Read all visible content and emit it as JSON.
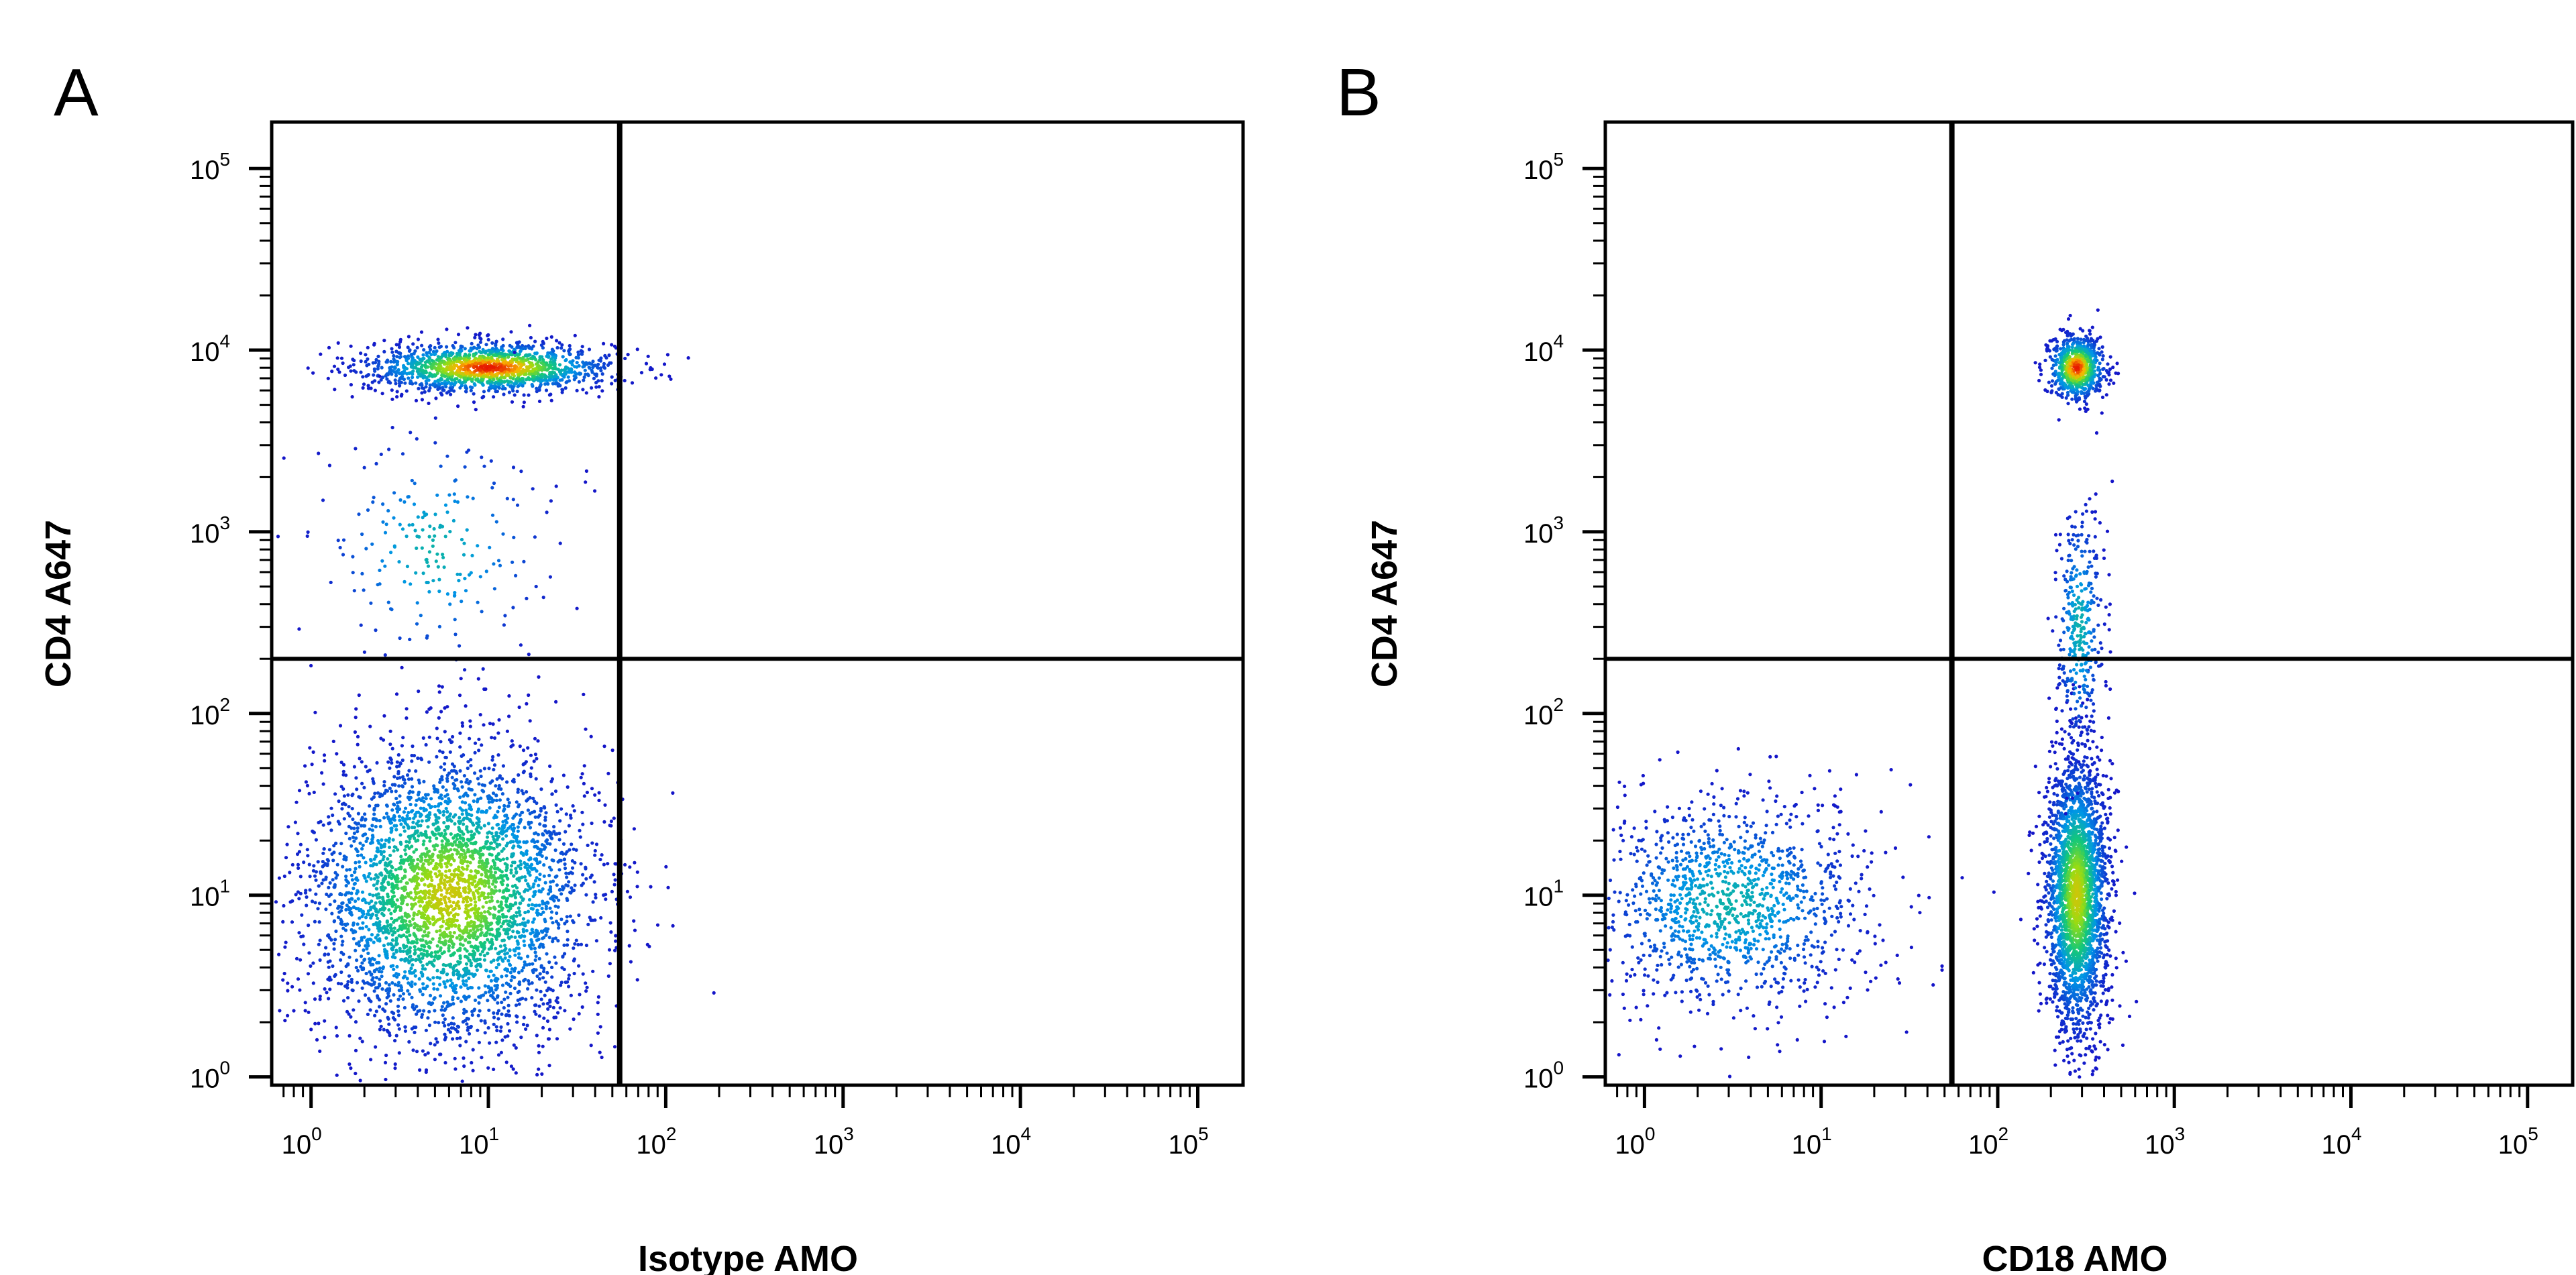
{
  "chart_data": [
    {
      "type": "scatter",
      "panel": "A",
      "xlabel": "Isotype AMO",
      "ylabel": "CD4 A647",
      "xscale": "log",
      "yscale": "log",
      "xlim": [
        0.6,
        180000
      ],
      "ylim": [
        0.9,
        180000
      ],
      "xticks": [
        {
          "base": "10",
          "exp": "0",
          "value": 1
        },
        {
          "base": "10",
          "exp": "1",
          "value": 10
        },
        {
          "base": "10",
          "exp": "2",
          "value": 100
        },
        {
          "base": "10",
          "exp": "3",
          "value": 1000
        },
        {
          "base": "10",
          "exp": "4",
          "value": 10000
        },
        {
          "base": "10",
          "exp": "5",
          "value": 100000
        }
      ],
      "yticks": [
        {
          "base": "10",
          "exp": "0",
          "value": 1
        },
        {
          "base": "10",
          "exp": "1",
          "value": 10
        },
        {
          "base": "10",
          "exp": "2",
          "value": 100
        },
        {
          "base": "10",
          "exp": "3",
          "value": 1000
        },
        {
          "base": "10",
          "exp": "4",
          "value": 10000
        },
        {
          "base": "10",
          "exp": "5",
          "value": 100000
        }
      ],
      "quadrant_gate": {
        "x": 55,
        "y": 200
      },
      "populations": [
        {
          "x_center": 10,
          "y_center": 8000,
          "x_spread": 0.35,
          "y_spread": 0.07,
          "count": 1500,
          "peak_density": "high"
        },
        {
          "x_center": 6,
          "y_center": 10,
          "x_spread": 0.4,
          "y_spread": 0.4,
          "count": 3800,
          "peak_density": "medium"
        },
        {
          "x_center": 5,
          "y_center": 800,
          "x_spread": 0.35,
          "y_spread": 0.35,
          "count": 220,
          "peak_density": "low"
        }
      ]
    },
    {
      "type": "scatter",
      "panel": "B",
      "xlabel": "CD18 AMO",
      "ylabel": "CD4 A647",
      "xscale": "log",
      "yscale": "log",
      "xlim": [
        0.6,
        180000
      ],
      "ylim": [
        0.9,
        180000
      ],
      "xticks": [
        {
          "base": "10",
          "exp": "0",
          "value": 1
        },
        {
          "base": "10",
          "exp": "1",
          "value": 10
        },
        {
          "base": "10",
          "exp": "2",
          "value": 100
        },
        {
          "base": "10",
          "exp": "3",
          "value": 1000
        },
        {
          "base": "10",
          "exp": "4",
          "value": 10000
        },
        {
          "base": "10",
          "exp": "5",
          "value": 100000
        }
      ],
      "yticks": [
        {
          "base": "10",
          "exp": "0",
          "value": 1
        },
        {
          "base": "10",
          "exp": "1",
          "value": 10
        },
        {
          "base": "10",
          "exp": "2",
          "value": 100
        },
        {
          "base": "10",
          "exp": "3",
          "value": 1000
        },
        {
          "base": "10",
          "exp": "4",
          "value": 10000
        },
        {
          "base": "10",
          "exp": "5",
          "value": 100000
        }
      ],
      "quadrant_gate": {
        "x": 55,
        "y": 200
      },
      "populations": [
        {
          "x_center": 280,
          "y_center": 8000,
          "x_spread": 0.08,
          "y_spread": 0.09,
          "count": 700,
          "peak_density": "high"
        },
        {
          "x_center": 280,
          "y_center": 10,
          "x_spread": 0.09,
          "y_spread": 0.38,
          "count": 2600,
          "peak_density": "medium"
        },
        {
          "x_center": 290,
          "y_center": 300,
          "x_spread": 0.07,
          "y_spread": 0.35,
          "count": 350,
          "peak_density": "low"
        },
        {
          "x_center": 3,
          "y_center": 9,
          "x_spread": 0.4,
          "y_spread": 0.3,
          "count": 1300,
          "peak_density": "low"
        }
      ]
    }
  ]
}
